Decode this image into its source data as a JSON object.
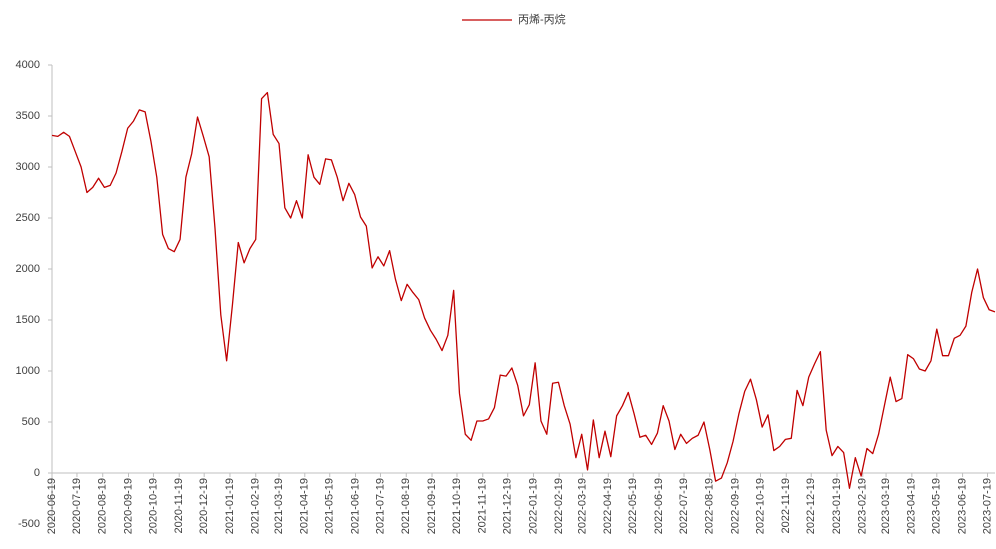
{
  "chart_data": {
    "type": "line",
    "legend": "top",
    "series": [
      {
        "name": "丙烯-丙烷",
        "color": "#c00000",
        "values": [
          3310,
          3300,
          3340,
          3300,
          3150,
          3000,
          2750,
          2800,
          2890,
          2800,
          2820,
          2940,
          3150,
          3380,
          3450,
          3560,
          3540,
          3250,
          2900,
          2340,
          2200,
          2170,
          2290,
          2900,
          3130,
          3490,
          3300,
          3100,
          2400,
          1550,
          1100,
          1650,
          2260,
          2060,
          2200,
          2290,
          3670,
          3730,
          3320,
          3230,
          2600,
          2500,
          2670,
          2500,
          3120,
          2900,
          2830,
          3080,
          3070,
          2900,
          2670,
          2840,
          2730,
          2510,
          2420,
          2010,
          2120,
          2030,
          2180,
          1900,
          1690,
          1850,
          1770,
          1700,
          1520,
          1400,
          1310,
          1200,
          1350,
          1790,
          780,
          380,
          320,
          510,
          510,
          530,
          640,
          960,
          950,
          1030,
          860,
          560,
          670,
          1080,
          510,
          380,
          880,
          890,
          660,
          480,
          150,
          380,
          30,
          520,
          150,
          410,
          160,
          560,
          660,
          790,
          580,
          350,
          370,
          280,
          390,
          660,
          510,
          230,
          380,
          290,
          340,
          370,
          500,
          230,
          -80,
          -50,
          100,
          310,
          580,
          800,
          920,
          720,
          450,
          570,
          220,
          260,
          330,
          340,
          810,
          660,
          940,
          1070,
          1190,
          420,
          170,
          260,
          200,
          -150,
          150,
          -30,
          240,
          190,
          380,
          660,
          940,
          700,
          730,
          1160,
          1120,
          1020,
          1000,
          1100,
          1410,
          1150,
          1150,
          1320,
          1350,
          1440,
          1770,
          2000,
          1720,
          1600,
          1580
        ]
      }
    ],
    "x": [
      "2020-06-19",
      "2020-06-26",
      "2020-07-03",
      "2020-07-10",
      "2020-07-17",
      "2020-07-24",
      "2020-07-31",
      "2020-08-07",
      "2020-08-14",
      "2020-08-21",
      "2020-08-28",
      "2020-09-04",
      "2020-09-11",
      "2020-09-18",
      "2020-09-25",
      "2020-10-02",
      "2020-10-09",
      "2020-10-16",
      "2020-10-23",
      "2020-10-30",
      "2020-11-06",
      "2020-11-13",
      "2020-11-20",
      "2020-11-27",
      "2020-12-04",
      "2020-12-11",
      "2020-12-18",
      "2020-12-25",
      "2021-01-01",
      "2021-01-08",
      "2021-01-15",
      "2021-01-22",
      "2021-01-29",
      "2021-02-05",
      "2021-02-12",
      "2021-02-19",
      "2021-02-26",
      "2021-03-05",
      "2021-03-12",
      "2021-03-19",
      "2021-03-26",
      "2021-04-02",
      "2021-04-09",
      "2021-04-16",
      "2021-04-23",
      "2021-04-30",
      "2021-05-07",
      "2021-05-14",
      "2021-05-21",
      "2021-05-28",
      "2021-06-04",
      "2021-06-11",
      "2021-06-18",
      "2021-06-25",
      "2021-07-02",
      "2021-07-09",
      "2021-07-16",
      "2021-07-23",
      "2021-07-30",
      "2021-08-06",
      "2021-08-13",
      "2021-08-20",
      "2021-08-27",
      "2021-09-03",
      "2021-09-10",
      "2021-09-17",
      "2021-09-24",
      "2021-10-01",
      "2021-10-08",
      "2021-10-15",
      "2021-10-22",
      "2021-10-29",
      "2021-11-05",
      "2021-11-12",
      "2021-11-19",
      "2021-11-26",
      "2021-12-03",
      "2021-12-10",
      "2021-12-17",
      "2021-12-24",
      "2021-12-31",
      "2022-01-07",
      "2022-01-14",
      "2022-01-21",
      "2022-01-28",
      "2022-02-04",
      "2022-02-11",
      "2022-02-18",
      "2022-02-25",
      "2022-03-04",
      "2022-03-11",
      "2022-03-18",
      "2022-03-25",
      "2022-04-01",
      "2022-04-08",
      "2022-04-15",
      "2022-04-22",
      "2022-04-29",
      "2022-05-06",
      "2022-05-13",
      "2022-05-20",
      "2022-05-27",
      "2022-06-03",
      "2022-06-10",
      "2022-06-17",
      "2022-06-24",
      "2022-07-01",
      "2022-07-08",
      "2022-07-15",
      "2022-07-22",
      "2022-07-29",
      "2022-08-05",
      "2022-08-12",
      "2022-08-19",
      "2022-08-26",
      "2022-09-02",
      "2022-09-09",
      "2022-09-16",
      "2022-09-23",
      "2022-09-30",
      "2022-10-07",
      "2022-10-14",
      "2022-10-21",
      "2022-10-28",
      "2022-11-04",
      "2022-11-11",
      "2022-11-18",
      "2022-11-25",
      "2022-12-02",
      "2022-12-09",
      "2022-12-16",
      "2022-12-23",
      "2022-12-30",
      "2023-01-06",
      "2023-01-13",
      "2023-01-20",
      "2023-01-27",
      "2023-02-03",
      "2023-02-10",
      "2023-02-17",
      "2023-02-24",
      "2023-03-03",
      "2023-03-10",
      "2023-03-17",
      "2023-03-24",
      "2023-03-31",
      "2023-04-07",
      "2023-04-14",
      "2023-04-21",
      "2023-04-28",
      "2023-05-05",
      "2023-05-12",
      "2023-05-19",
      "2023-05-26",
      "2023-06-02",
      "2023-06-09",
      "2023-06-16",
      "2023-06-23",
      "2023-06-30",
      "2023-07-07",
      "2023-07-14",
      "2023-07-21",
      "2023-07-28"
    ],
    "xlim": [
      "2020-06-19",
      "2023-07-28"
    ],
    "xticks": [
      "2020-06-19",
      "2020-07-19",
      "2020-08-19",
      "2020-09-19",
      "2020-10-19",
      "2020-11-19",
      "2020-12-19",
      "2021-01-19",
      "2021-02-19",
      "2021-03-19",
      "2021-04-19",
      "2021-05-19",
      "2021-06-19",
      "2021-07-19",
      "2021-08-19",
      "2021-09-19",
      "2021-10-19",
      "2021-11-19",
      "2021-12-19",
      "2022-01-19",
      "2022-02-19",
      "2022-03-19",
      "2022-04-19",
      "2022-05-19",
      "2022-06-19",
      "2022-07-19",
      "2022-08-19",
      "2022-09-19",
      "2022-10-19",
      "2022-11-19",
      "2022-12-19",
      "2023-01-19",
      "2023-02-19",
      "2023-03-19",
      "2023-04-19",
      "2023-05-19",
      "2023-06-19",
      "2023-07-19"
    ],
    "ylim": [
      -500,
      4000
    ],
    "yticks": [
      -500,
      0,
      500,
      1000,
      1500,
      2000,
      2500,
      3000,
      3500,
      4000
    ],
    "grid": false
  }
}
